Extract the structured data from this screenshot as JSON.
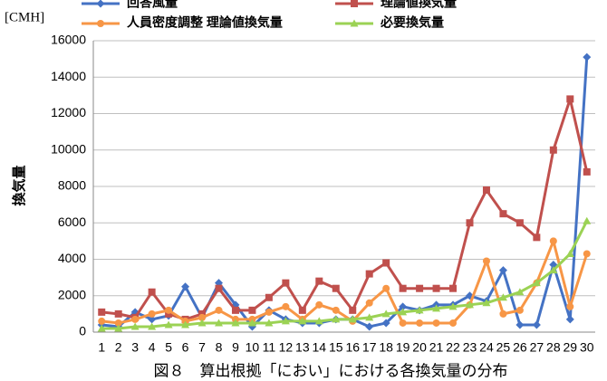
{
  "chart_data": {
    "type": "line",
    "title": "図８　算出根拠「におい」における各換気量の分布",
    "unit_label": "[CMH]",
    "y_label": "換気量",
    "categories": [
      "1",
      "2",
      "3",
      "4",
      "5",
      "6",
      "7",
      "8",
      "9",
      "10",
      "11",
      "12",
      "13",
      "14",
      "15",
      "16",
      "17",
      "18",
      "19",
      "20",
      "21",
      "22",
      "23",
      "24",
      "25",
      "26",
      "27",
      "28",
      "29",
      "30"
    ],
    "series": [
      {
        "name": "回答風量",
        "color": "#4472c4",
        "marker": "diamond",
        "values": [
          400,
          300,
          1100,
          700,
          900,
          2500,
          800,
          2700,
          1500,
          300,
          1200,
          700,
          500,
          500,
          700,
          700,
          300,
          500,
          1400,
          1200,
          1500,
          1500,
          2000,
          1700,
          3400,
          400,
          400,
          3700,
          700,
          15100
        ]
      },
      {
        "name": "理論値換気量",
        "color": "#c0504d",
        "marker": "square",
        "values": [
          1100,
          1000,
          800,
          2200,
          1000,
          700,
          1000,
          2400,
          1200,
          1200,
          1900,
          2700,
          1200,
          2800,
          2400,
          1200,
          3200,
          3800,
          2400,
          2400,
          2400,
          2400,
          6000,
          7800,
          6500,
          6000,
          5200,
          10000,
          12800,
          8800
        ]
      },
      {
        "name": "人員密度調整 理論値換気量",
        "color": "#f79646",
        "marker": "circle",
        "values": [
          600,
          500,
          700,
          1000,
          1200,
          600,
          800,
          1200,
          700,
          700,
          1100,
          1400,
          700,
          1500,
          1200,
          600,
          1600,
          2400,
          500,
          500,
          500,
          500,
          1500,
          3900,
          1000,
          1200,
          2700,
          5000,
          1400,
          4300
        ]
      },
      {
        "name": "必要換気量",
        "color": "#9bd254",
        "marker": "triangle",
        "values": [
          200,
          200,
          300,
          300,
          400,
          400,
          500,
          500,
          500,
          500,
          500,
          600,
          600,
          600,
          700,
          700,
          800,
          1000,
          1100,
          1200,
          1300,
          1400,
          1500,
          1600,
          1900,
          2200,
          2700,
          3400,
          4300,
          6100
        ]
      }
    ],
    "ylim": [
      0,
      16000
    ],
    "yticks": [
      0,
      2000,
      4000,
      6000,
      8000,
      10000,
      12000,
      14000,
      16000
    ],
    "grid": true
  }
}
